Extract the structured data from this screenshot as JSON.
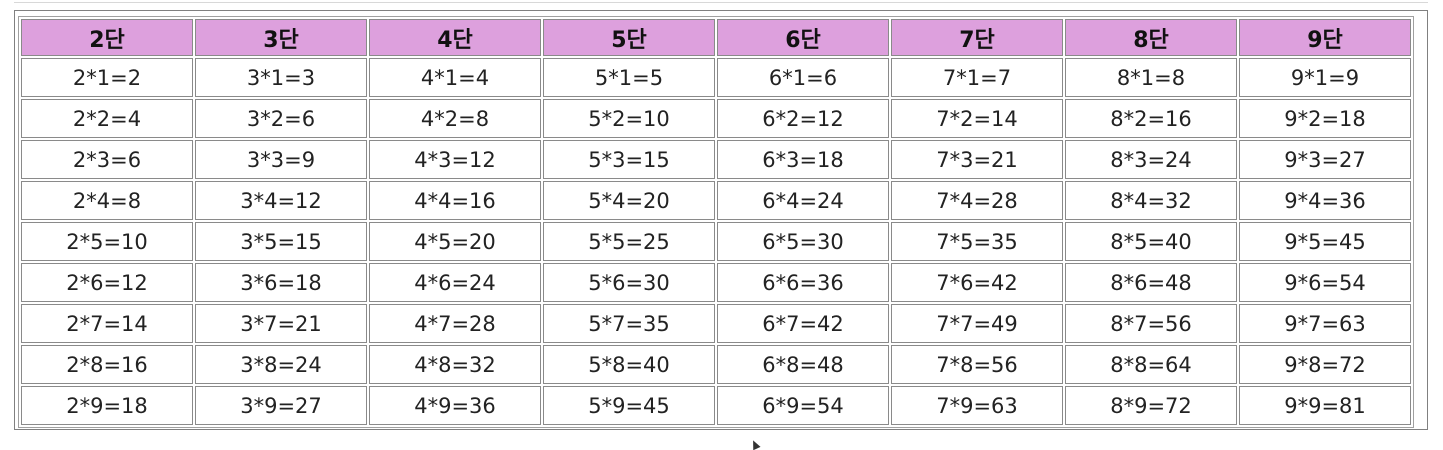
{
  "table": {
    "headers": [
      "2단",
      "3단",
      "4단",
      "5단",
      "6단",
      "7단",
      "8단",
      "9단"
    ],
    "rows": [
      [
        "2*1=2",
        "3*1=3",
        "4*1=4",
        "5*1=5",
        "6*1=6",
        "7*1=7",
        "8*1=8",
        "9*1=9"
      ],
      [
        "2*2=4",
        "3*2=6",
        "4*2=8",
        "5*2=10",
        "6*2=12",
        "7*2=14",
        "8*2=16",
        "9*2=18"
      ],
      [
        "2*3=6",
        "3*3=9",
        "4*3=12",
        "5*3=15",
        "6*3=18",
        "7*3=21",
        "8*3=24",
        "9*3=27"
      ],
      [
        "2*4=8",
        "3*4=12",
        "4*4=16",
        "5*4=20",
        "6*4=24",
        "7*4=28",
        "8*4=32",
        "9*4=36"
      ],
      [
        "2*5=10",
        "3*5=15",
        "4*5=20",
        "5*5=25",
        "6*5=30",
        "7*5=35",
        "8*5=40",
        "9*5=45"
      ],
      [
        "2*6=12",
        "3*6=18",
        "4*6=24",
        "5*6=30",
        "6*6=36",
        "7*6=42",
        "8*6=48",
        "9*6=54"
      ],
      [
        "2*7=14",
        "3*7=21",
        "4*7=28",
        "5*7=35",
        "6*7=42",
        "7*7=49",
        "8*7=56",
        "9*7=63"
      ],
      [
        "2*8=16",
        "3*8=24",
        "4*8=32",
        "5*8=40",
        "6*8=48",
        "7*8=56",
        "8*8=64",
        "9*8=72"
      ],
      [
        "2*9=18",
        "3*9=27",
        "4*9=36",
        "5*9=45",
        "6*9=54",
        "7*9=63",
        "8*9=72",
        "9*9=81"
      ]
    ]
  },
  "colors": {
    "header_background": "#dda0dd",
    "cell_background": "#ffffff",
    "border": "#8a8a8a"
  },
  "icons": {
    "cursor": "mouse-pointer-icon"
  }
}
